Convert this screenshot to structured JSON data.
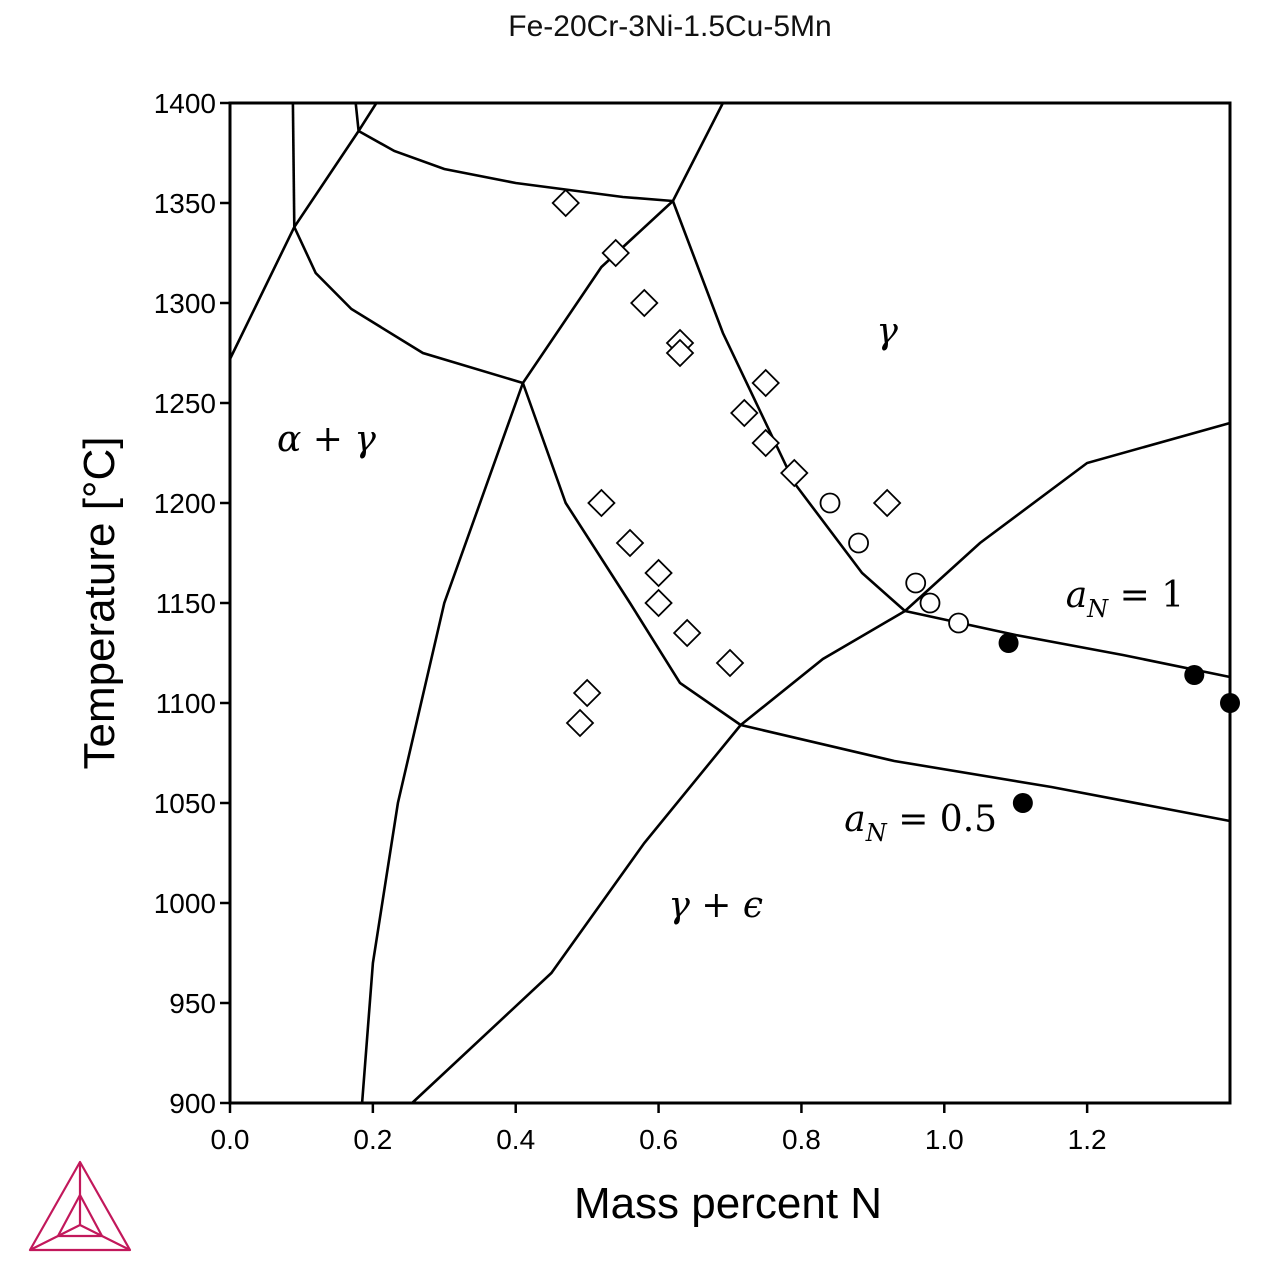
{
  "chart_data": {
    "type": "scatter",
    "title": "Fe-20Cr-3Ni-1.5Cu-5Mn",
    "xlabel": "Mass percent N",
    "ylabel": "Temperature [°C]",
    "xlim": [
      0.0,
      1.4
    ],
    "ylim": [
      900,
      1400
    ],
    "xticks": [
      "0.0",
      "0.2",
      "0.4",
      "0.6",
      "0.8",
      "1.0",
      "1.2"
    ],
    "yticks": [
      "900",
      "950",
      "1000",
      "1050",
      "1100",
      "1150",
      "1200",
      "1250",
      "1300",
      "1350",
      "1400"
    ],
    "grid": false,
    "regions": [
      {
        "name": "alpha-gamma",
        "text": "α + γ",
        "x": 0.135,
        "y": 1226
      },
      {
        "name": "gamma",
        "text": "γ",
        "x": 0.92,
        "y": 1280
      },
      {
        "name": "gamma-epsilon",
        "text": "γ + ϵ",
        "x": 0.68,
        "y": 993
      }
    ],
    "activity_labels": [
      {
        "name": "a-n-1",
        "var": "a",
        "sub": "N",
        "rest": " = 1",
        "x": 1.17,
        "y": 1148
      },
      {
        "name": "a-n-05",
        "var": "a",
        "sub": "N",
        "rest": " = 0.5",
        "x": 0.86,
        "y": 1036
      }
    ],
    "boundaries": [
      [
        [
          0.0,
          1272
        ],
        [
          0.09,
          1338
        ],
        [
          0.18,
          1386
        ],
        [
          0.205,
          1400
        ]
      ],
      [
        [
          0.09,
          1338
        ],
        [
          0.088,
          1400
        ]
      ],
      [
        [
          0.18,
          1386
        ],
        [
          0.176,
          1400
        ]
      ],
      [
        [
          0.09,
          1338
        ],
        [
          0.12,
          1315
        ],
        [
          0.17,
          1297
        ],
        [
          0.27,
          1275
        ],
        [
          0.41,
          1260
        ]
      ],
      [
        [
          0.18,
          1386
        ],
        [
          0.23,
          1376
        ],
        [
          0.3,
          1367
        ],
        [
          0.4,
          1360
        ],
        [
          0.55,
          1353
        ],
        [
          0.62,
          1351
        ]
      ],
      [
        [
          0.41,
          1260
        ],
        [
          0.52,
          1318
        ],
        [
          0.62,
          1351
        ]
      ],
      [
        [
          0.62,
          1351
        ],
        [
          0.69,
          1400
        ]
      ],
      [
        [
          0.41,
          1260
        ],
        [
          0.3,
          1150
        ],
        [
          0.235,
          1050
        ],
        [
          0.2,
          970
        ],
        [
          0.185,
          900
        ]
      ],
      [
        [
          0.41,
          1260
        ],
        [
          0.47,
          1200
        ],
        [
          0.56,
          1150
        ],
        [
          0.63,
          1110
        ],
        [
          0.715,
          1089
        ]
      ],
      [
        [
          0.62,
          1351
        ],
        [
          0.69,
          1285
        ],
        [
          0.79,
          1210
        ],
        [
          0.885,
          1165
        ],
        [
          0.945,
          1146
        ]
      ],
      [
        [
          0.715,
          1089
        ],
        [
          0.83,
          1122
        ],
        [
          0.945,
          1146
        ]
      ],
      [
        [
          0.945,
          1146
        ],
        [
          1.05,
          1180
        ],
        [
          1.2,
          1220
        ],
        [
          1.4,
          1240
        ]
      ],
      [
        [
          0.945,
          1146
        ],
        [
          1.1,
          1134
        ],
        [
          1.25,
          1124
        ],
        [
          1.4,
          1113
        ]
      ],
      [
        [
          0.715,
          1089
        ],
        [
          0.93,
          1071
        ],
        [
          1.15,
          1058
        ],
        [
          1.4,
          1041
        ]
      ],
      [
        [
          0.715,
          1089
        ],
        [
          0.58,
          1030
        ],
        [
          0.45,
          965
        ],
        [
          0.255,
          900
        ]
      ]
    ],
    "series": [
      {
        "marker": "diamond-open",
        "points": [
          [
            0.47,
            1350
          ],
          [
            0.54,
            1325
          ],
          [
            0.58,
            1300
          ],
          [
            0.63,
            1280
          ],
          [
            0.63,
            1275
          ],
          [
            0.75,
            1260
          ],
          [
            0.72,
            1245
          ],
          [
            0.75,
            1230
          ],
          [
            0.79,
            1215
          ],
          [
            0.92,
            1200
          ],
          [
            0.52,
            1200
          ],
          [
            0.56,
            1180
          ],
          [
            0.6,
            1165
          ],
          [
            0.6,
            1150
          ],
          [
            0.64,
            1135
          ],
          [
            0.7,
            1120
          ],
          [
            0.5,
            1105
          ],
          [
            0.49,
            1090
          ]
        ]
      },
      {
        "marker": "circle-open",
        "points": [
          [
            0.84,
            1200
          ],
          [
            0.88,
            1180
          ],
          [
            0.96,
            1160
          ],
          [
            0.98,
            1150
          ],
          [
            1.02,
            1140
          ]
        ]
      },
      {
        "marker": "circle-filled",
        "points": [
          [
            1.09,
            1130
          ],
          [
            1.35,
            1114
          ],
          [
            1.4,
            1100
          ],
          [
            1.11,
            1050
          ]
        ]
      }
    ]
  }
}
